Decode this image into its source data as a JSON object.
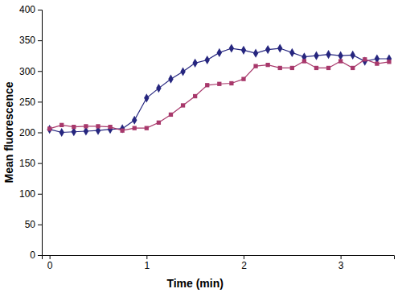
{
  "chart_data": {
    "type": "line",
    "x_label": "Time (min)",
    "y_label": "Mean fluorescence",
    "x": [
      0,
      0.125,
      0.25,
      0.375,
      0.5,
      0.625,
      0.75,
      0.875,
      1,
      1.125,
      1.25,
      1.375,
      1.5,
      1.625,
      1.75,
      1.875,
      2,
      2.125,
      2.25,
      2.375,
      2.5,
      2.625,
      2.75,
      2.875,
      3,
      3.125,
      3.25,
      3.375,
      3.5
    ],
    "series": [
      {
        "color": "#26267f",
        "marker": "diamond",
        "line_style": "solid",
        "values": [
          205,
          200,
          201,
          202,
          203,
          205,
          206,
          220,
          256,
          272,
          287,
          299,
          313,
          318,
          330,
          337,
          334,
          329,
          335,
          337,
          330,
          323,
          325,
          327,
          325,
          326,
          316,
          320,
          320
        ]
      },
      {
        "color": "#a8386b",
        "marker": "square",
        "line_style": "solid",
        "values": [
          206,
          212,
          209,
          210,
          210,
          209,
          203,
          207,
          207,
          216,
          229,
          244,
          259,
          277,
          279,
          280,
          287,
          308,
          310,
          305,
          305,
          316,
          305,
          305,
          316,
          305,
          319,
          312,
          315
        ]
      }
    ],
    "xlim": [
      -0.08,
      3.55
    ],
    "xticks": [
      0,
      1,
      2,
      3
    ],
    "ylim": [
      0,
      400
    ],
    "yticks": [
      0,
      50,
      100,
      150,
      200,
      250,
      300,
      350,
      400
    ],
    "grid": false
  }
}
